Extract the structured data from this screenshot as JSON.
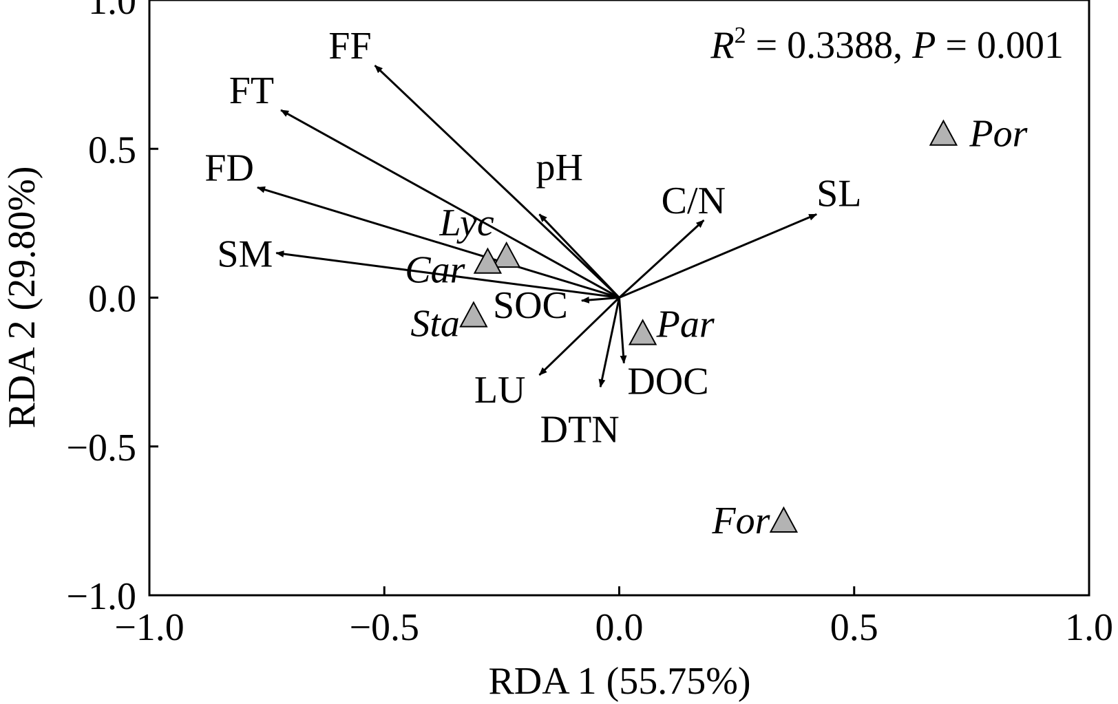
{
  "chart_data": {
    "type": "scatter",
    "subtype": "rda-biplot",
    "xlabel": "RDA 1 (55.75%)",
    "ylabel": "RDA 2 (29.80%)",
    "xlim": [
      -1.0,
      1.0
    ],
    "ylim": [
      -1.0,
      1.0
    ],
    "xticks": [
      -1.0,
      -0.5,
      0.0,
      0.5,
      1.0
    ],
    "yticks": [
      -1.0,
      -0.5,
      0.0,
      0.5,
      1.0
    ],
    "xtick_labels": [
      "−1.0",
      "−0.5",
      "0.0",
      "0.5",
      "1.0"
    ],
    "ytick_labels": [
      "−1.0",
      "−0.5",
      "0.0",
      "0.5",
      "1.0"
    ],
    "grid": false,
    "annotation": {
      "r2_symbol": "R",
      "r2_exp": "2",
      "r2_rest": " = 0.3388, ",
      "p_symbol": "P",
      "p_rest": " = 0.001"
    },
    "arrows": [
      {
        "name": "FF",
        "x": -0.52,
        "y": 0.78
      },
      {
        "name": "FT",
        "x": -0.72,
        "y": 0.63
      },
      {
        "name": "FD",
        "x": -0.77,
        "y": 0.37
      },
      {
        "name": "SM",
        "x": -0.73,
        "y": 0.15
      },
      {
        "name": "pH",
        "x": -0.17,
        "y": 0.28
      },
      {
        "name": "C/N",
        "x": 0.18,
        "y": 0.26
      },
      {
        "name": "SL",
        "x": 0.42,
        "y": 0.28
      },
      {
        "name": "SOC",
        "x": -0.08,
        "y": -0.01
      },
      {
        "name": "LU",
        "x": -0.17,
        "y": -0.26
      },
      {
        "name": "DTN",
        "x": -0.04,
        "y": -0.3
      },
      {
        "name": "DOC",
        "x": 0.01,
        "y": -0.22
      }
    ],
    "points": [
      {
        "name": "Por",
        "x": 0.69,
        "y": 0.55
      },
      {
        "name": "Lyc",
        "x": -0.24,
        "y": 0.14
      },
      {
        "name": "Car",
        "x": -0.28,
        "y": 0.12
      },
      {
        "name": "Sta",
        "x": -0.31,
        "y": -0.06
      },
      {
        "name": "Par",
        "x": 0.05,
        "y": -0.12
      },
      {
        "name": "For",
        "x": 0.35,
        "y": -0.75
      }
    ],
    "colors": {
      "axis": "#000000",
      "arrow": "#000000",
      "marker_fill": "#b3b3b3",
      "marker_stroke": "#000000"
    }
  }
}
